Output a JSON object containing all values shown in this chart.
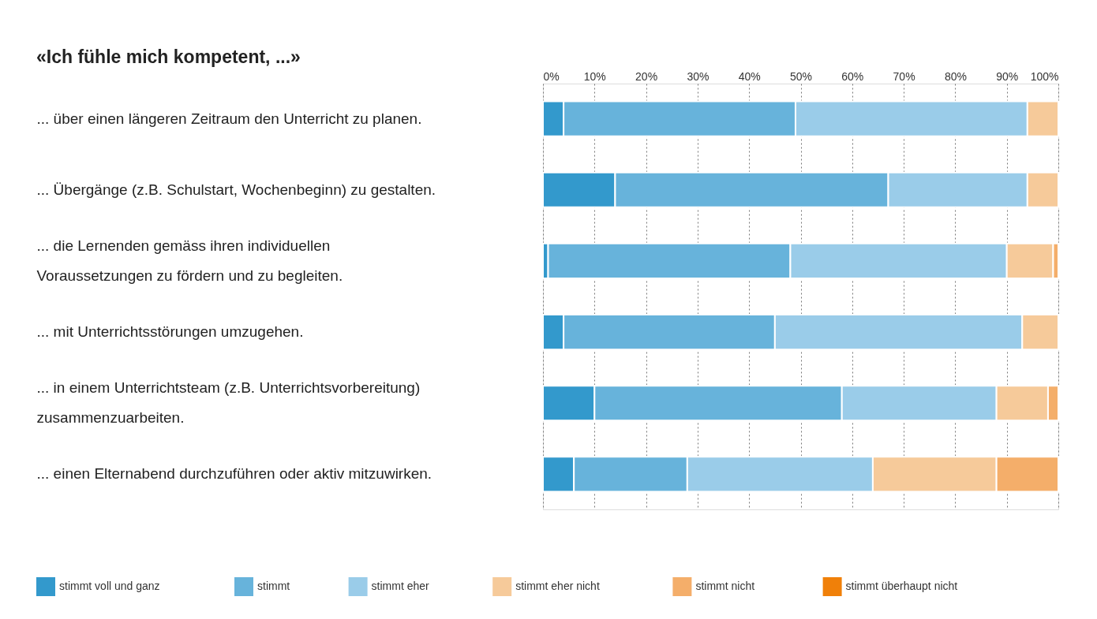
{
  "chart_data": {
    "type": "bar",
    "orientation": "horizontal",
    "stacked": true,
    "title": "«Ich fühle mich kompetent, ...»",
    "categories": [
      "... über einen längeren Zeitraum den Unterricht zu planen.",
      "... Übergänge (z.B. Schulstart, Wochenbeginn) zu gestalten.",
      "... die Lernenden gemäss ihren individuellen Voraussetzungen zu fördern und zu begleiten.",
      "... mit Unterrichtsstörungen umzugehen.",
      "... in einem Unterrichtsteam (z.B. Unterrichtsvorbereitung) zusammenzuarbeiten.",
      "... einen Elternabend durchzuführen oder aktiv mitzuwirken."
    ],
    "series": [
      {
        "name": "stimmt voll und ganz",
        "color": "#3399cc",
        "values": [
          4,
          14,
          1,
          4,
          10,
          6
        ]
      },
      {
        "name": "stimmt",
        "color": "#67b3db",
        "values": [
          45,
          53,
          47,
          41,
          48,
          22
        ]
      },
      {
        "name": "stimmt eher",
        "color": "#9acce9",
        "values": [
          45,
          27,
          42,
          48,
          30,
          36
        ]
      },
      {
        "name": "stimmt eher nicht",
        "color": "#f6ca9a",
        "values": [
          6,
          6,
          9,
          7,
          10,
          24
        ]
      },
      {
        "name": "stimmt nicht",
        "color": "#f4ae6a",
        "values": [
          0,
          0,
          1,
          0,
          2,
          12
        ]
      },
      {
        "name": "stimmt überhaupt nicht",
        "color": "#f08009",
        "values": [
          0,
          0,
          0,
          0,
          0,
          0
        ]
      }
    ],
    "xlim": [
      0,
      100
    ],
    "xticks": [
      {
        "value": 0,
        "label": "0%"
      },
      {
        "value": 10,
        "label": "10%"
      },
      {
        "value": 20,
        "label": "20%"
      },
      {
        "value": 30,
        "label": "30%"
      },
      {
        "value": 40,
        "label": "40%"
      },
      {
        "value": 50,
        "label": "50%"
      },
      {
        "value": 60,
        "label": "60%"
      },
      {
        "value": 70,
        "label": "70%"
      },
      {
        "value": 80,
        "label": "80%"
      },
      {
        "value": 90,
        "label": "90%"
      },
      {
        "value": 100,
        "label": "100%"
      }
    ],
    "grid": "x",
    "legend": "bottom"
  }
}
